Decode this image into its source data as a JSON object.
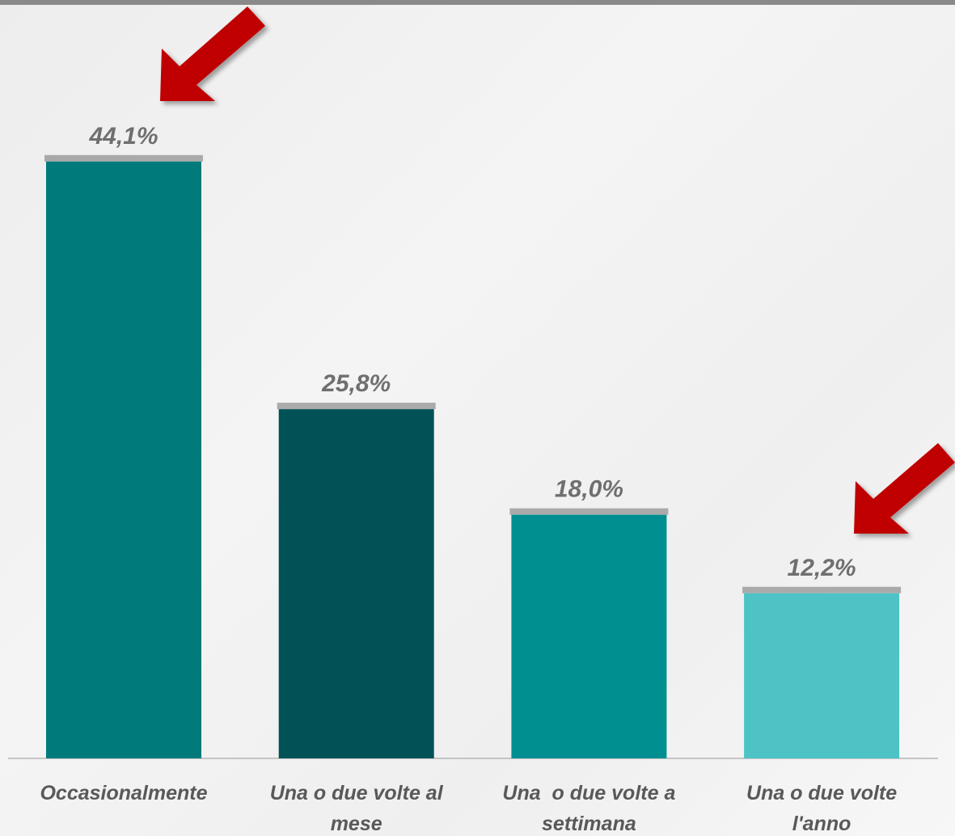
{
  "chart_data": {
    "type": "bar",
    "categories": [
      "Occasionalmente",
      "Una o due volte al mese",
      "Una  o due volte a settimana",
      "Una o due volte l'anno"
    ],
    "values": [
      44.1,
      25.8,
      18.0,
      12.2
    ],
    "value_labels": [
      "44,1%",
      "25,8%",
      "18,0%",
      "12,2%"
    ],
    "colors": [
      "#007a7b",
      "#005257",
      "#008f91",
      "#4ec3c5"
    ]
  }
}
